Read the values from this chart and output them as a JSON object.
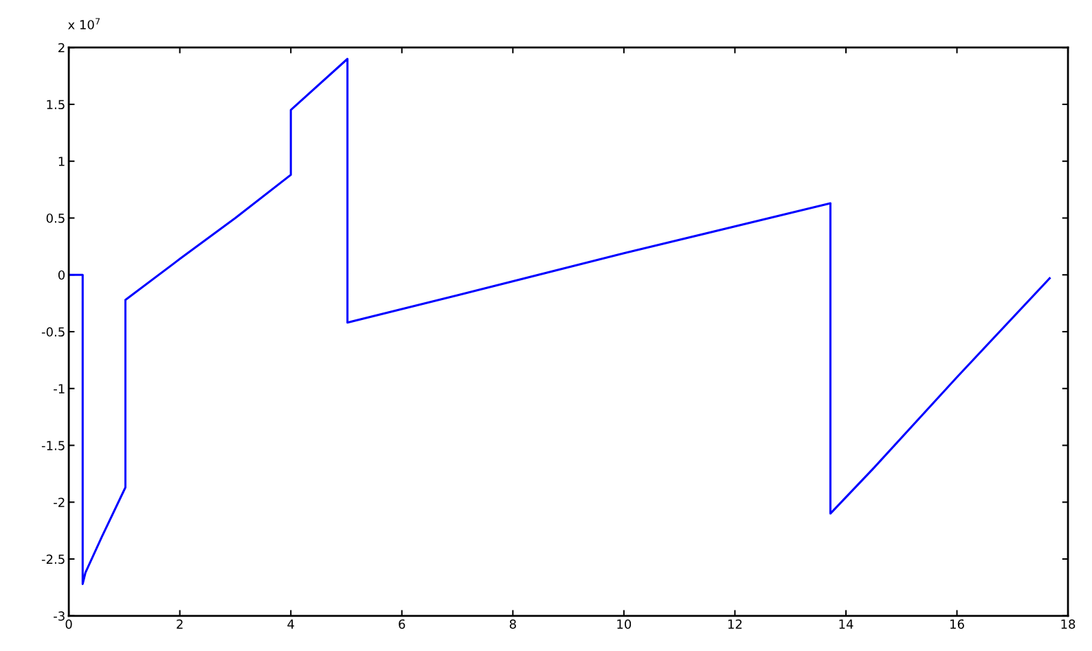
{
  "chart_data": {
    "type": "line",
    "annotations": [
      "x 10$^{7}$"
    ],
    "x": [
      0,
      0.25,
      0.25,
      0.3,
      0.6,
      1.02,
      1.02,
      2,
      3,
      4.0,
      4.0,
      5.02,
      5.02,
      7,
      10,
      13.72,
      13.72,
      14.5,
      16,
      17.67
    ],
    "series": [
      {
        "color": "#0000ff",
        "values": [
          0,
          0,
          -2.72,
          -2.62,
          -2.3,
          -1.87,
          -0.22,
          0.14,
          0.5,
          0.88,
          1.45,
          1.9,
          -0.42,
          -0.18,
          0.19,
          0.63,
          -2.1,
          -1.7,
          -0.9,
          -0.03
        ]
      }
    ],
    "xlim": [
      0,
      18
    ],
    "xticks": [
      0,
      2,
      4,
      6,
      8,
      10,
      12,
      14,
      16,
      18
    ],
    "ylim": [
      -3,
      2
    ],
    "yticks": [
      -3,
      -2.5,
      -2,
      -1.5,
      -1,
      -0.5,
      0,
      0.5,
      1,
      1.5,
      2
    ],
    "marker": "none",
    "line_style": "solid"
  }
}
